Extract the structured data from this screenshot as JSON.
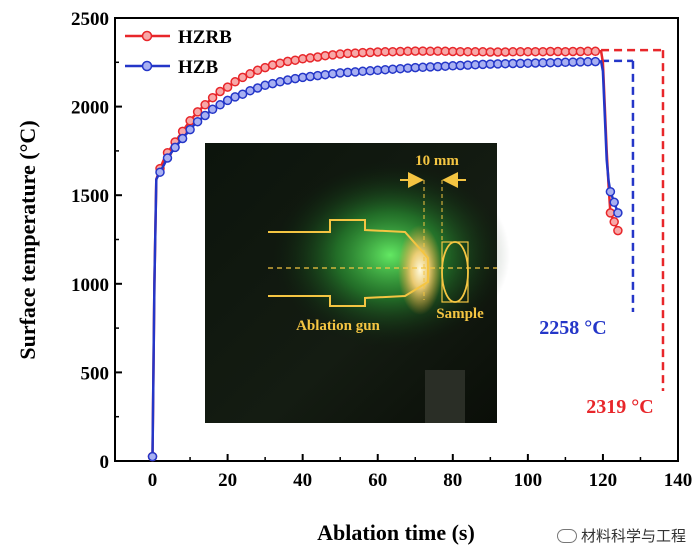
{
  "chart_data": {
    "type": "line",
    "xlabel": "Ablation time (s)",
    "ylabel": "Surface temperature (°C)",
    "xlim": [
      -10,
      140
    ],
    "ylim": [
      0,
      2500
    ],
    "xticks": [
      0,
      20,
      40,
      60,
      80,
      100,
      120,
      140
    ],
    "xtick_labels": [
      "0",
      "20",
      "40",
      "60",
      "80",
      "100",
      "120",
      "140"
    ],
    "yticks": [
      0,
      500,
      1000,
      1500,
      2000,
      2500
    ],
    "ytick_labels": [
      "0",
      "500",
      "1000",
      "1500",
      "2000",
      "2500"
    ],
    "legend_position": "top-left",
    "series": [
      {
        "name": "HZRB",
        "color": "#e8262a",
        "points": [
          [
            0,
            25
          ],
          [
            0.5,
            1000
          ],
          [
            1,
            1590
          ],
          [
            2,
            1650
          ],
          [
            3,
            1700
          ],
          [
            4,
            1740
          ],
          [
            5,
            1770
          ],
          [
            6,
            1800
          ],
          [
            7,
            1830
          ],
          [
            8,
            1860
          ],
          [
            9,
            1890
          ],
          [
            10,
            1920
          ],
          [
            11,
            1945
          ],
          [
            12,
            1970
          ],
          [
            14,
            2010
          ],
          [
            16,
            2050
          ],
          [
            18,
            2085
          ],
          [
            20,
            2110
          ],
          [
            22,
            2140
          ],
          [
            24,
            2165
          ],
          [
            26,
            2185
          ],
          [
            28,
            2205
          ],
          [
            30,
            2220
          ],
          [
            32,
            2235
          ],
          [
            34,
            2245
          ],
          [
            36,
            2255
          ],
          [
            38,
            2262
          ],
          [
            40,
            2270
          ],
          [
            42,
            2275
          ],
          [
            44,
            2280
          ],
          [
            46,
            2287
          ],
          [
            48,
            2292
          ],
          [
            50,
            2297
          ],
          [
            52,
            2300
          ],
          [
            54,
            2302
          ],
          [
            56,
            2305
          ],
          [
            58,
            2306
          ],
          [
            60,
            2308
          ],
          [
            62,
            2309
          ],
          [
            64,
            2310
          ],
          [
            66,
            2311
          ],
          [
            68,
            2312
          ],
          [
            70,
            2313
          ],
          [
            72,
            2313
          ],
          [
            74,
            2312
          ],
          [
            76,
            2313
          ],
          [
            78,
            2312
          ],
          [
            80,
            2311
          ],
          [
            82,
            2310
          ],
          [
            84,
            2310
          ],
          [
            86,
            2309
          ],
          [
            88,
            2309
          ],
          [
            90,
            2308
          ],
          [
            92,
            2308
          ],
          [
            94,
            2308
          ],
          [
            96,
            2309
          ],
          [
            98,
            2309
          ],
          [
            100,
            2310
          ],
          [
            102,
            2310
          ],
          [
            104,
            2310
          ],
          [
            106,
            2311
          ],
          [
            108,
            2311
          ],
          [
            110,
            2310
          ],
          [
            112,
            2311
          ],
          [
            114,
            2311
          ],
          [
            116,
            2312
          ],
          [
            118,
            2312
          ],
          [
            119.5,
            2312
          ],
          [
            120,
            2250
          ],
          [
            120.5,
            2000
          ],
          [
            121,
            1750
          ],
          [
            121.5,
            1550
          ],
          [
            122,
            1400
          ],
          [
            123,
            1350
          ],
          [
            124,
            1300
          ]
        ]
      },
      {
        "name": "HZB",
        "color": "#2436c8",
        "points": [
          [
            0,
            25
          ],
          [
            0.5,
            1000
          ],
          [
            1,
            1590
          ],
          [
            2,
            1630
          ],
          [
            3,
            1670
          ],
          [
            4,
            1710
          ],
          [
            5,
            1740
          ],
          [
            6,
            1770
          ],
          [
            7,
            1795
          ],
          [
            8,
            1820
          ],
          [
            9,
            1845
          ],
          [
            10,
            1870
          ],
          [
            11,
            1895
          ],
          [
            12,
            1915
          ],
          [
            14,
            1950
          ],
          [
            16,
            1985
          ],
          [
            18,
            2010
          ],
          [
            20,
            2035
          ],
          [
            22,
            2055
          ],
          [
            24,
            2070
          ],
          [
            26,
            2090
          ],
          [
            28,
            2105
          ],
          [
            30,
            2120
          ],
          [
            32,
            2130
          ],
          [
            34,
            2140
          ],
          [
            36,
            2150
          ],
          [
            38,
            2158
          ],
          [
            40,
            2165
          ],
          [
            42,
            2170
          ],
          [
            44,
            2175
          ],
          [
            46,
            2180
          ],
          [
            48,
            2185
          ],
          [
            50,
            2190
          ],
          [
            52,
            2193
          ],
          [
            54,
            2196
          ],
          [
            56,
            2199
          ],
          [
            58,
            2202
          ],
          [
            60,
            2205
          ],
          [
            62,
            2208
          ],
          [
            64,
            2211
          ],
          [
            66,
            2214
          ],
          [
            68,
            2217
          ],
          [
            70,
            2220
          ],
          [
            72,
            2222
          ],
          [
            74,
            2224
          ],
          [
            76,
            2226
          ],
          [
            78,
            2228
          ],
          [
            80,
            2230
          ],
          [
            82,
            2232
          ],
          [
            84,
            2234
          ],
          [
            86,
            2236
          ],
          [
            88,
            2238
          ],
          [
            90,
            2240
          ],
          [
            92,
            2241
          ],
          [
            94,
            2242
          ],
          [
            96,
            2243
          ],
          [
            98,
            2244
          ],
          [
            100,
            2245
          ],
          [
            102,
            2246
          ],
          [
            104,
            2247
          ],
          [
            106,
            2248
          ],
          [
            108,
            2249
          ],
          [
            110,
            2250
          ],
          [
            112,
            2251
          ],
          [
            114,
            2252
          ],
          [
            116,
            2253
          ],
          [
            118,
            2254
          ],
          [
            119.5,
            2255
          ],
          [
            120,
            2200
          ],
          [
            120.5,
            1950
          ],
          [
            121,
            1700
          ],
          [
            121.5,
            1580
          ],
          [
            122,
            1520
          ],
          [
            123,
            1460
          ],
          [
            124,
            1400
          ]
        ]
      }
    ],
    "reference_lines": [
      {
        "label": "2258 °C",
        "value": 2258,
        "x_end": 128,
        "color": "#2436c8"
      },
      {
        "label": "2319 °C",
        "value": 2319,
        "x_end": 136,
        "color": "#e8262a"
      }
    ],
    "inset": {
      "dimension_label": "10 mm",
      "left_label": "Ablation gun",
      "right_label": "Sample"
    }
  },
  "watermark": {
    "text": "材料科学与工程"
  }
}
